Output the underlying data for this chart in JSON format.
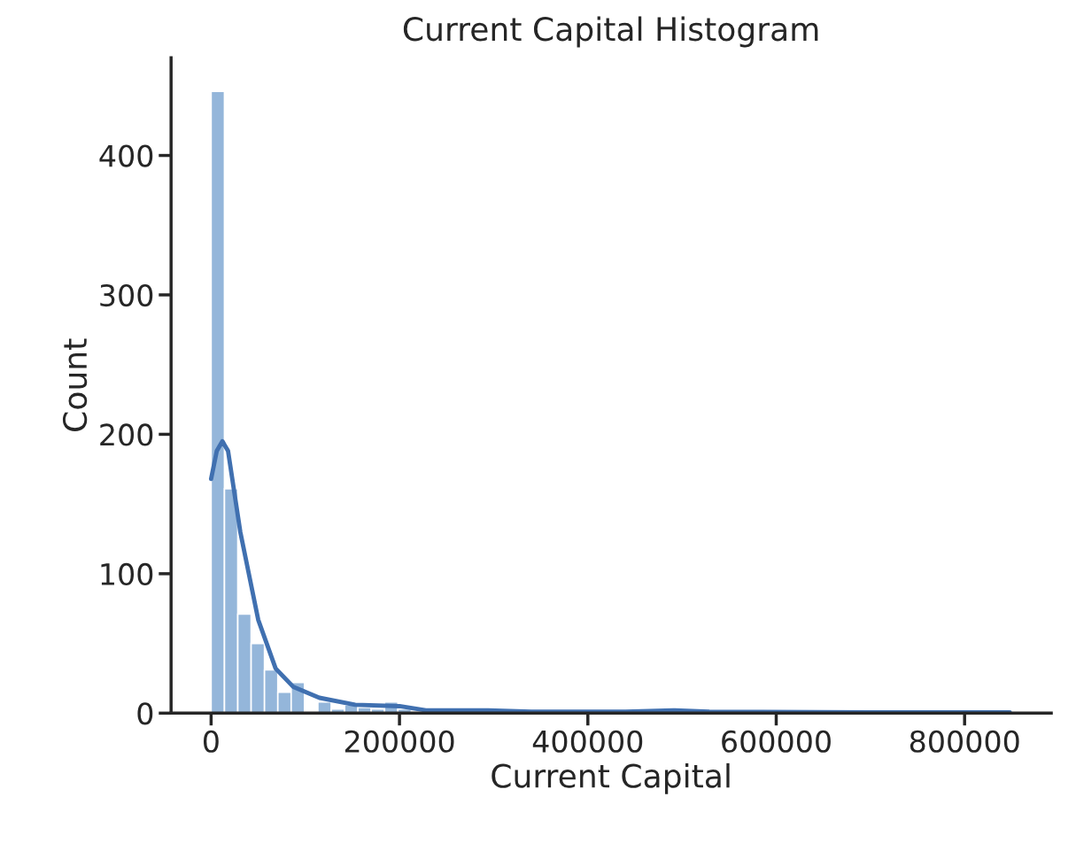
{
  "chart_data": {
    "type": "histogram",
    "title": "Current Capital Histogram",
    "xlabel": "Current Capital",
    "ylabel": "Count",
    "xlim": [
      -42500,
      892000
    ],
    "xticks": [
      0,
      200000,
      400000,
      600000,
      800000
    ],
    "ylim": [
      0,
      470
    ],
    "yticks": [
      0,
      100,
      200,
      300,
      400
    ],
    "grid": false,
    "series": [
      {
        "color": "#94b6da",
        "bins": [
          0,
          14167,
          28333,
          42500,
          56667,
          70833,
          85000,
          99167,
          113333,
          127500,
          141667,
          155833,
          170000,
          184167,
          198333,
          212500,
          226667,
          240833,
          255000,
          269167,
          283333,
          297500,
          311667,
          325833,
          340000,
          354167,
          368333,
          382500,
          396667,
          410833,
          425000,
          439167,
          453333,
          467500,
          481667,
          495833,
          510000,
          524167,
          538333,
          552500,
          566667,
          580833,
          595000,
          609167,
          623333,
          637500,
          651667,
          665833,
          680000,
          694167,
          708333,
          722500,
          736667,
          750833,
          765000,
          779167,
          793333,
          807500,
          821667,
          835833,
          850000
        ],
        "values": [
          446,
          161,
          71,
          50,
          31,
          15,
          22,
          0,
          8,
          3,
          6,
          4,
          3,
          8,
          3,
          null,
          null,
          null,
          null,
          null,
          null,
          null,
          null,
          null,
          null,
          null,
          null,
          null,
          null,
          null,
          null,
          null,
          null,
          null,
          null,
          null,
          null,
          null,
          null,
          null,
          null,
          null,
          null,
          null,
          null,
          null,
          null,
          null,
          null,
          null,
          null,
          null,
          null,
          null,
          null,
          null,
          null,
          null,
          null,
          null
        ]
      },
      {
        "type": "line",
        "color": "#4070b0",
        "x": [
          0,
          6000,
          12000,
          18000,
          31000,
          50000,
          68500,
          87000,
          115000,
          153000,
          200000,
          228000,
          294000,
          340000,
          440000,
          491000,
          529000,
          700000,
          848000
        ],
        "values": [
          168,
          188,
          195,
          188,
          130,
          67,
          32,
          19,
          11,
          6,
          5,
          2,
          2,
          1,
          1,
          2,
          1,
          0.5,
          0.5
        ]
      }
    ]
  }
}
